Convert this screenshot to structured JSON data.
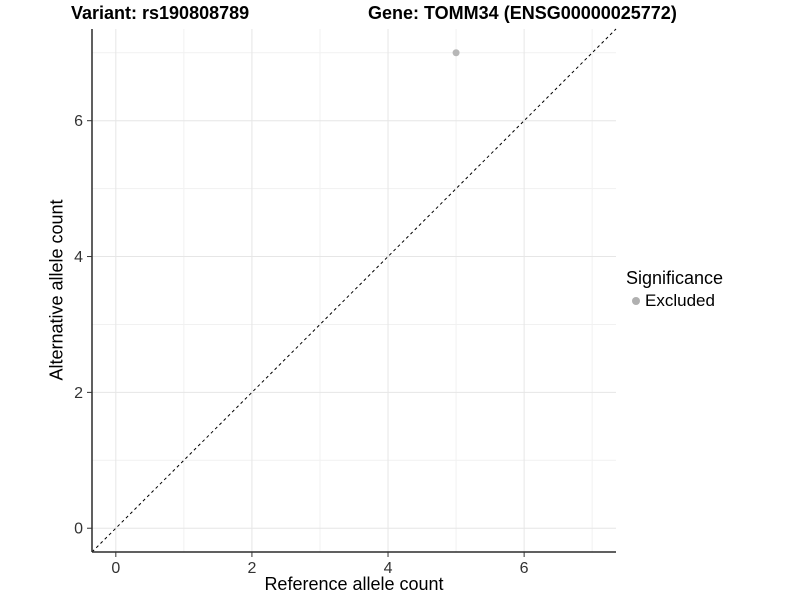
{
  "header": {
    "variant_title": "Variant: rs190808789",
    "gene_title": "Gene: TOMM34 (ENSG00000025772)"
  },
  "chart_data": {
    "type": "scatter",
    "xlabel": "Reference allele count",
    "ylabel": "Alternative allele count",
    "xlim": [
      -0.35,
      7.35
    ],
    "ylim": [
      -0.35,
      7.35
    ],
    "x_ticks": [
      0,
      2,
      4,
      6
    ],
    "y_ticks": [
      0,
      2,
      4,
      6
    ],
    "x_minor": [
      1,
      3,
      5,
      7
    ],
    "y_minor": [
      1,
      3,
      5,
      7
    ],
    "grid": true,
    "legend_position": "right",
    "series": [
      {
        "name": "Excluded",
        "color": "#b7b7b7",
        "points": [
          {
            "x": 5,
            "y": 7
          }
        ]
      }
    ],
    "reference_line": {
      "type": "identity",
      "style": "dashed",
      "from": [
        -0.35,
        -0.35
      ],
      "to": [
        7.35,
        7.35
      ],
      "color": "#000000"
    }
  },
  "legend": {
    "title": "Significance",
    "items": [
      {
        "label": "Excluded",
        "color": "#b0b0b0",
        "marker": "circle"
      }
    ]
  },
  "colors": {
    "background": "#ffffff",
    "major_grid": "#e6e6e6",
    "minor_grid": "#f1f1f1",
    "axis_line": "#2b2b2b",
    "tick_mark": "#333333",
    "tick_label": "#333333"
  }
}
